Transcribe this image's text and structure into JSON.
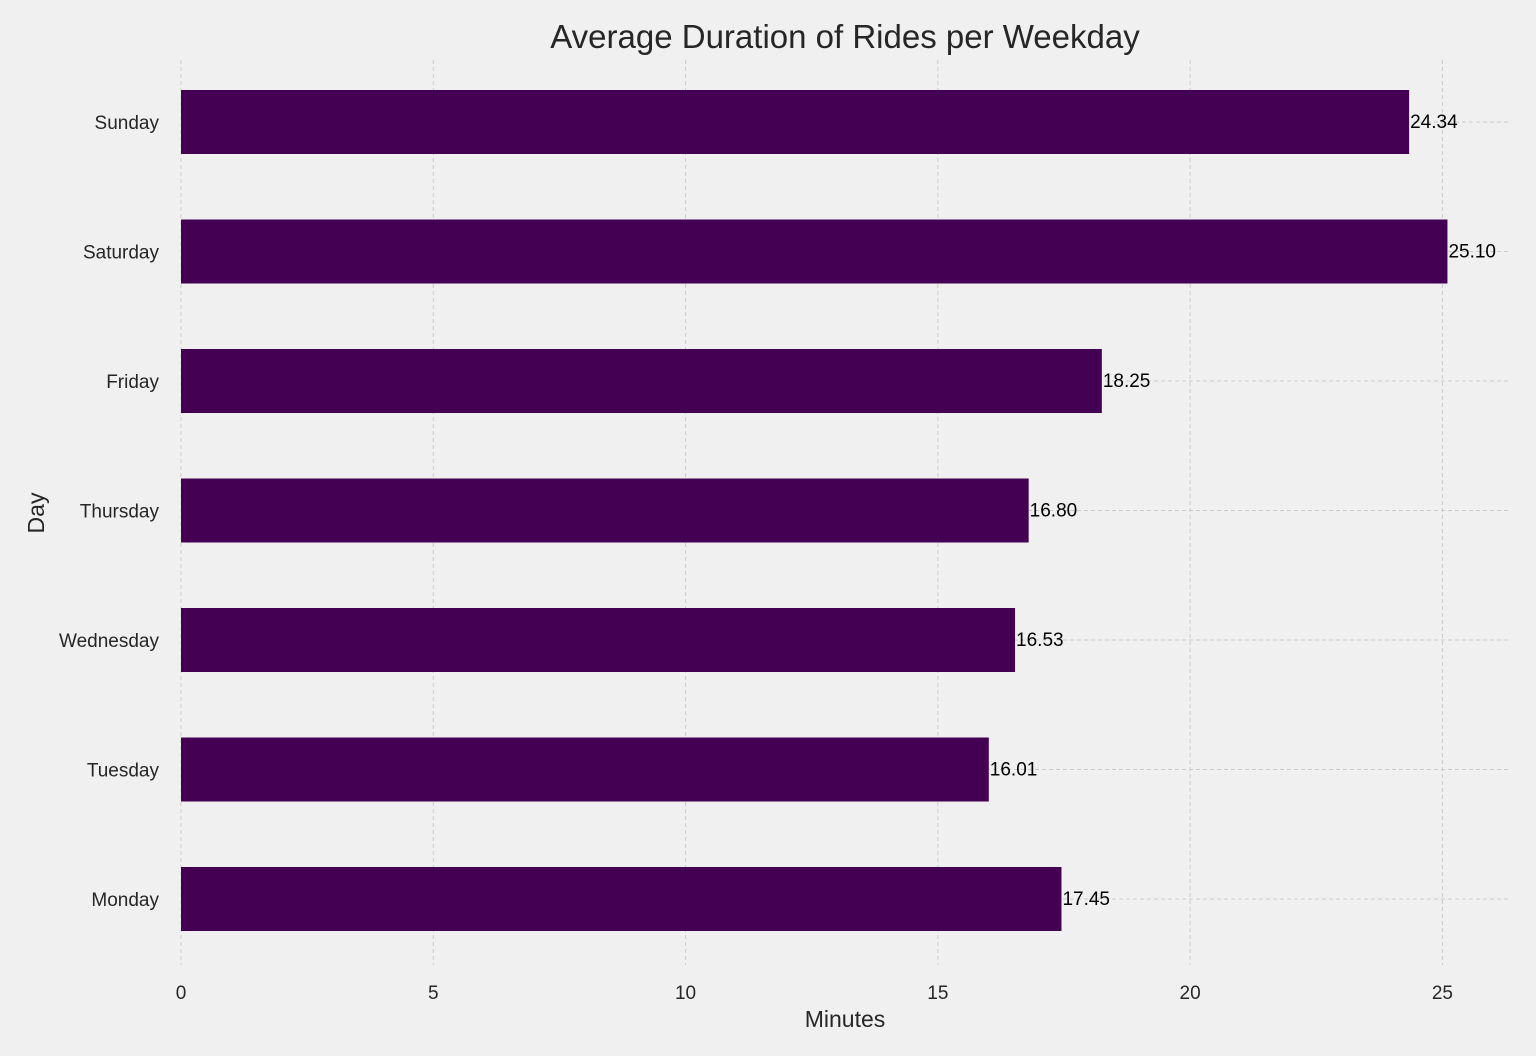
{
  "chart_data": {
    "type": "bar",
    "orientation": "horizontal",
    "title": "Average Duration of Rides per Weekday",
    "xlabel": "Minutes",
    "ylabel": "Day",
    "categories": [
      "Monday",
      "Tuesday",
      "Wednesday",
      "Thursday",
      "Friday",
      "Saturday",
      "Sunday"
    ],
    "values": [
      17.45,
      16.01,
      16.53,
      16.8,
      18.25,
      25.1,
      24.34
    ],
    "data_labels": [
      "17.45",
      "16.01",
      "16.53",
      "16.80",
      "18.25",
      "25.10",
      "24.34"
    ],
    "xlim": [
      0,
      26.3
    ],
    "xticks": [
      0,
      5,
      10,
      15,
      20,
      25
    ],
    "grid": true,
    "colors": {
      "background": "#f0f0f0",
      "bar": "#440154",
      "grid": "#cbcbcb",
      "text": "#262626"
    }
  }
}
